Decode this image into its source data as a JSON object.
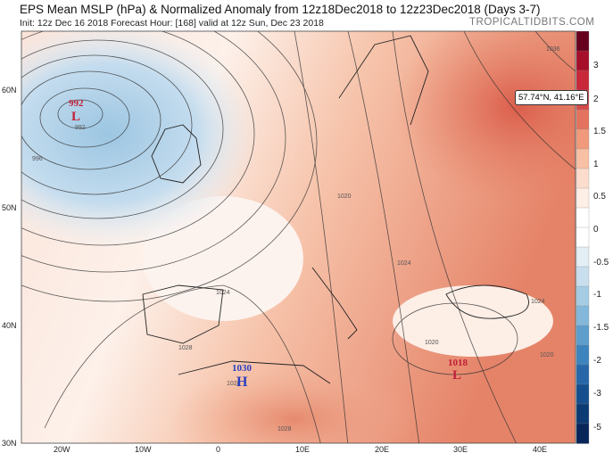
{
  "header": {
    "title": "EPS Mean MSLP (hPa) & Normalized Anomaly from 12z18Dec2018 to 12z23Dec2018 (Days 3-7)",
    "subtitle": "Init: 12z Dec 16 2018   Forecast Hour: [168]   valid at 12z Sun, Dec 23 2018",
    "brand": "TROPICALTIDBITS.COM"
  },
  "map": {
    "lat_labels": [
      "60N",
      "50N",
      "40N",
      "30N"
    ],
    "lon_labels": [
      "20W",
      "10W",
      "0",
      "10E",
      "20E",
      "30E",
      "40E"
    ],
    "pressure_centers": [
      {
        "value": "992",
        "letter": "L",
        "color": "#c0203a"
      },
      {
        "value": "1030",
        "letter": "H",
        "color": "#2a3fc0"
      },
      {
        "value": "1018",
        "letter": "L",
        "color": "#c0203a"
      }
    ],
    "contour_labels": [
      "1036",
      "992",
      "996",
      "1020",
      "1024",
      "1024",
      "1028",
      "1028",
      "1028",
      "1020",
      "1020",
      "1024"
    ],
    "tooltip": "57.74°N, 41.16°E"
  },
  "colorbar": {
    "labels": [
      "3",
      "2",
      "1.5",
      "1",
      "0.5",
      "0",
      "-0.5",
      "-1",
      "-1.5",
      "-2",
      "-3",
      "-5"
    ],
    "colors": [
      "#67001f",
      "#a50f2a",
      "#c8283a",
      "#d6494a",
      "#e3735e",
      "#f09a7b",
      "#f8c0a5",
      "#fcdccc",
      "#fdeee6",
      "#ffffff",
      "#ffffff",
      "#e3eef5",
      "#c9dfee",
      "#a6cce4",
      "#84b8da",
      "#5e9ecc",
      "#3d83bd",
      "#2767a9",
      "#164f8e",
      "#0c3a72",
      "#08265a"
    ]
  }
}
